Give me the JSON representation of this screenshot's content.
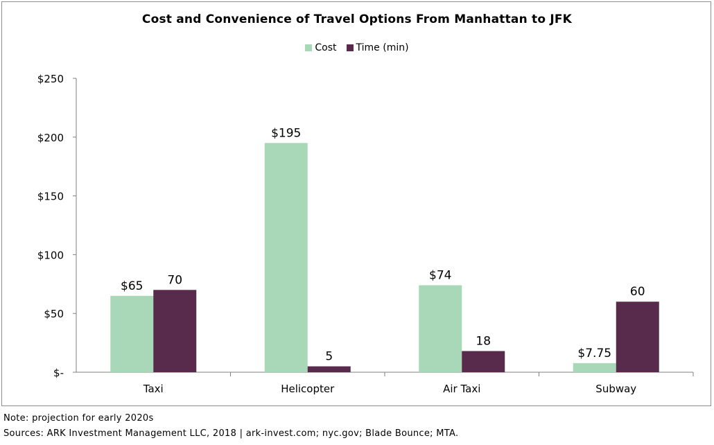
{
  "chart_data": {
    "type": "bar",
    "title": "Cost and Convenience of Travel Options From Manhattan to JFK",
    "categories": [
      "Taxi",
      "Helicopter",
      "Air Taxi",
      "Subway"
    ],
    "series": [
      {
        "name": "Cost",
        "color": "#a9d8b8",
        "values": [
          65,
          195,
          74,
          7.75
        ],
        "labels": [
          "$65",
          "$195",
          "$74",
          "$7.75"
        ]
      },
      {
        "name": "Time (min)",
        "color": "#582a4b",
        "values": [
          70,
          5,
          18,
          60
        ],
        "labels": [
          "70",
          "5",
          "18",
          "60"
        ]
      }
    ],
    "ylim": [
      0,
      250
    ],
    "yticks": [
      0,
      50,
      100,
      150,
      200,
      250
    ],
    "ytick_labels": [
      "$-",
      "$50",
      "$100",
      "$150",
      "$200",
      "$250"
    ],
    "xlabel": "",
    "ylabel": "",
    "legend_position": "top-center",
    "grid": false
  },
  "footer": {
    "note": "Note: projection for early 2020s",
    "sources": "Sources: ARK Investment Management LLC, 2018 | ark-invest.com; nyc.gov; Blade Bounce; MTA."
  }
}
